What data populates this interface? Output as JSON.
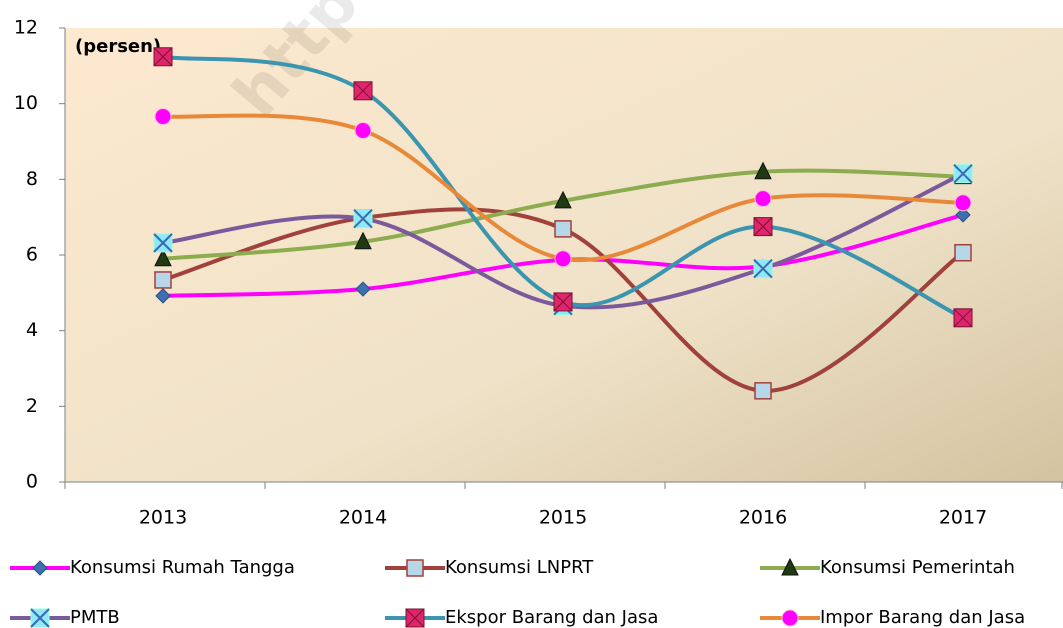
{
  "chart_data": {
    "type": "line",
    "annotation": "(persen)",
    "watermark": "https://bi",
    "categories": [
      "2013",
      "2014",
      "2015",
      "2016",
      "2017"
    ],
    "ylim": [
      0,
      12
    ],
    "yticks": [
      0,
      2,
      4,
      6,
      8,
      10,
      12
    ],
    "series": [
      {
        "name": "Konsumsi Rumah Tangga",
        "color": "#ff00ff",
        "marker": "diamond",
        "marker_color": "#3e6fb0",
        "values": [
          4.92,
          5.1,
          5.87,
          5.7,
          7.06
        ]
      },
      {
        "name": "Konsumsi LNPRT",
        "color": "#a0413c",
        "marker": "square",
        "marker_color": "#b7d7e8",
        "values": [
          5.34,
          6.98,
          6.69,
          2.41,
          6.06
        ]
      },
      {
        "name": "Konsumsi Pemerintah",
        "color": "#8cac4f",
        "marker": "triangle",
        "marker_color": "#1f3a10",
        "values": [
          5.9,
          6.35,
          7.43,
          8.2,
          8.07
        ]
      },
      {
        "name": "PMTB",
        "color": "#7b5a9c",
        "marker": "xbox",
        "marker_color": "#8ee8f7",
        "values": [
          6.32,
          6.96,
          4.66,
          5.64,
          8.15
        ]
      },
      {
        "name": "Ekspor Barang dan Jasa",
        "color": "#3c95b0",
        "marker": "xsquare",
        "marker_color": "#e0266b",
        "values": [
          11.24,
          10.34,
          4.76,
          6.75,
          4.34
        ]
      },
      {
        "name": "Impor Barang dan Jasa",
        "color": "#e8893a",
        "marker": "circle",
        "marker_color": "#ff00ff",
        "values": [
          9.66,
          9.29,
          5.9,
          7.49,
          7.38
        ]
      }
    ]
  }
}
